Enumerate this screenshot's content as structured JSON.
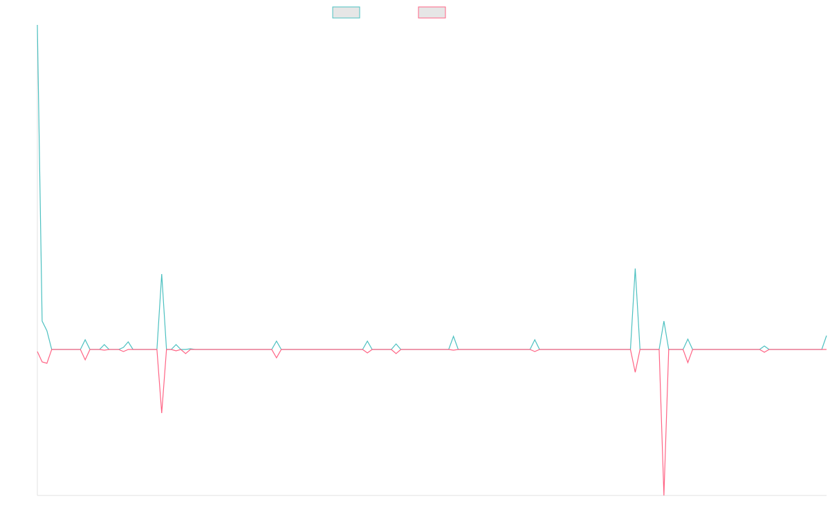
{
  "chart_data": {
    "type": "line",
    "ylim": [
      -211,
      469
    ],
    "series": [
      {
        "color": "#4bc0c0",
        "values": [
          469,
          41,
          27,
          0,
          0,
          0,
          0,
          0,
          0,
          0,
          14,
          0,
          0,
          0,
          7,
          0,
          0,
          0,
          3,
          11,
          0,
          0,
          0,
          0,
          0,
          0,
          109,
          0,
          0,
          7,
          0,
          0,
          1,
          0,
          0,
          0,
          0,
          0,
          0,
          0,
          0,
          0,
          0,
          0,
          0,
          0,
          0,
          0,
          0,
          0,
          12,
          0,
          0,
          0,
          0,
          0,
          0,
          0,
          0,
          0,
          0,
          0,
          0,
          0,
          0,
          0,
          0,
          0,
          0,
          12,
          0,
          0,
          0,
          0,
          0,
          8,
          0,
          0,
          0,
          0,
          0,
          0,
          0,
          0,
          0,
          0,
          0,
          19,
          0,
          0,
          0,
          0,
          0,
          0,
          0,
          0,
          0,
          0,
          0,
          0,
          0,
          0,
          0,
          0,
          14,
          0,
          0,
          0,
          0,
          0,
          0,
          0,
          0,
          0,
          0,
          0,
          0,
          0,
          0,
          0,
          0,
          0,
          0,
          0,
          0,
          117,
          0,
          0,
          0,
          0,
          0,
          41,
          0,
          0,
          0,
          0,
          15,
          0,
          0,
          0,
          0,
          0,
          0,
          0,
          0,
          0,
          0,
          0,
          0,
          0,
          0,
          0,
          5,
          0,
          0,
          0,
          0,
          0,
          0,
          0,
          0,
          0,
          0,
          0,
          0,
          20
        ]
      },
      {
        "color": "#ff6384",
        "values": [
          -3,
          -18,
          -20,
          0,
          0,
          0,
          0,
          0,
          0,
          0,
          -15,
          0,
          0,
          0,
          -1,
          0,
          0,
          0,
          -3,
          0,
          0,
          0,
          0,
          0,
          0,
          0,
          -92,
          0,
          0,
          -2,
          0,
          -6,
          0,
          0,
          0,
          0,
          0,
          0,
          0,
          0,
          0,
          0,
          0,
          0,
          0,
          0,
          0,
          0,
          0,
          0,
          -12,
          0,
          0,
          0,
          0,
          0,
          0,
          0,
          0,
          0,
          0,
          0,
          0,
          0,
          0,
          0,
          0,
          0,
          0,
          -5,
          0,
          0,
          0,
          0,
          0,
          -6,
          0,
          0,
          0,
          0,
          0,
          0,
          0,
          0,
          0,
          0,
          0,
          -1,
          0,
          0,
          0,
          0,
          0,
          0,
          0,
          0,
          0,
          0,
          0,
          0,
          0,
          0,
          0,
          0,
          -3,
          0,
          0,
          0,
          0,
          0,
          0,
          0,
          0,
          0,
          0,
          0,
          0,
          0,
          0,
          0,
          0,
          0,
          0,
          0,
          0,
          -33,
          0,
          0,
          0,
          0,
          0,
          -211,
          0,
          0,
          0,
          0,
          -19,
          0,
          0,
          0,
          0,
          0,
          0,
          0,
          0,
          0,
          0,
          0,
          0,
          0,
          0,
          0,
          -4,
          0,
          0,
          0,
          0,
          0,
          0,
          0,
          0,
          0,
          0,
          0,
          0,
          0
        ]
      }
    ]
  }
}
